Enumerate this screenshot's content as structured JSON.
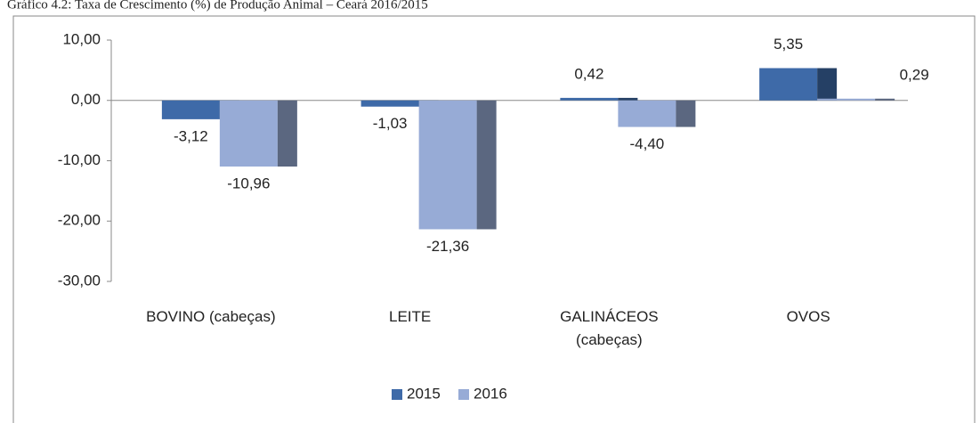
{
  "chart_data": {
    "type": "bar",
    "title": "Gráfico 4.2: Taxa de Crescimento (%) de Produção Animal – Ceará 2016/2015",
    "categories": [
      "BOVINO (cabeças)",
      "LEITE",
      "GALINÁCEOS (cabeças)",
      "OVOS"
    ],
    "series": [
      {
        "name": "2015",
        "color": "#3e6aa8",
        "values": [
          -3.12,
          -1.03,
          0.42,
          5.35
        ],
        "value_labels": [
          "-3,12",
          "-1,03",
          "0,42",
          "5,35"
        ]
      },
      {
        "name": "2016",
        "color": "#97abd6",
        "values": [
          -10.96,
          -21.36,
          -4.4,
          0.29
        ],
        "value_labels": [
          "-10,96",
          "-21,36",
          "-4,40",
          "0,29"
        ]
      }
    ],
    "ylim": [
      -30,
      10
    ],
    "yticks": [
      {
        "value": -30,
        "label": "-30,00"
      },
      {
        "value": -20,
        "label": "-20,00"
      },
      {
        "value": -10,
        "label": "-10,00"
      },
      {
        "value": 0,
        "label": "0,00"
      },
      {
        "value": 10,
        "label": "10,00"
      }
    ],
    "legend": "bottom"
  }
}
